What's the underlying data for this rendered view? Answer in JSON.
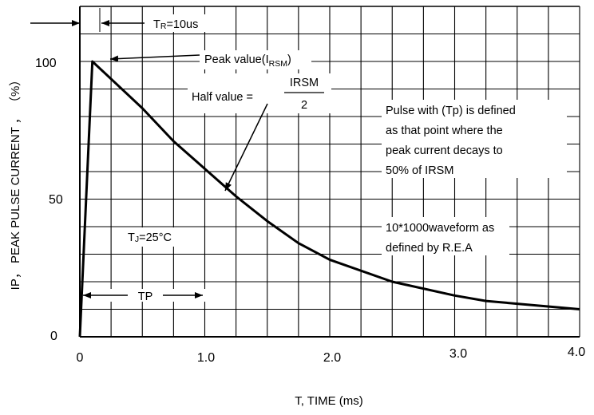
{
  "chart_data": {
    "type": "line",
    "xlabel": "T, TIME (ms)",
    "ylabel": "IP， PEAK PULSE CURRENT ， （%）",
    "xlim": [
      0,
      4.0
    ],
    "ylim": [
      0,
      120
    ],
    "x_ticks": [
      "0",
      "1.0",
      "2.0",
      "3.0",
      "4.0"
    ],
    "y_ticks": [
      "0",
      "50",
      "100"
    ],
    "grid": true,
    "series": [
      {
        "x": [
          0,
          0.1,
          0.5,
          0.75,
          1.0,
          1.25,
          1.5,
          1.75,
          2.0,
          2.5,
          3.0,
          3.25,
          3.5,
          4.0
        ],
        "y": [
          0,
          100,
          83,
          71,
          61,
          51,
          42,
          34,
          28,
          20,
          15,
          13,
          12,
          10
        ]
      }
    ],
    "annotations": {
      "rise_time_label": "T",
      "rise_time_sub": "R",
      "rise_time_value": "=10us",
      "peak_label": "Peak value(I",
      "peak_sub": "RSM",
      "peak_close": ")",
      "half_label": "Half value  =",
      "half_numerator": "IRSM",
      "half_denominator": "2",
      "pulse_note": [
        "Pulse with (Tp) is defined",
        "as that point where the",
        "peak current decays to",
        "50% of  IRSM"
      ],
      "tj_label": "T",
      "tj_sub": "J",
      "tj_value": "=25°C",
      "waveform_note": [
        "10*1000waveform as",
        "defined by R.E.A"
      ],
      "tp_label": "TP"
    }
  }
}
